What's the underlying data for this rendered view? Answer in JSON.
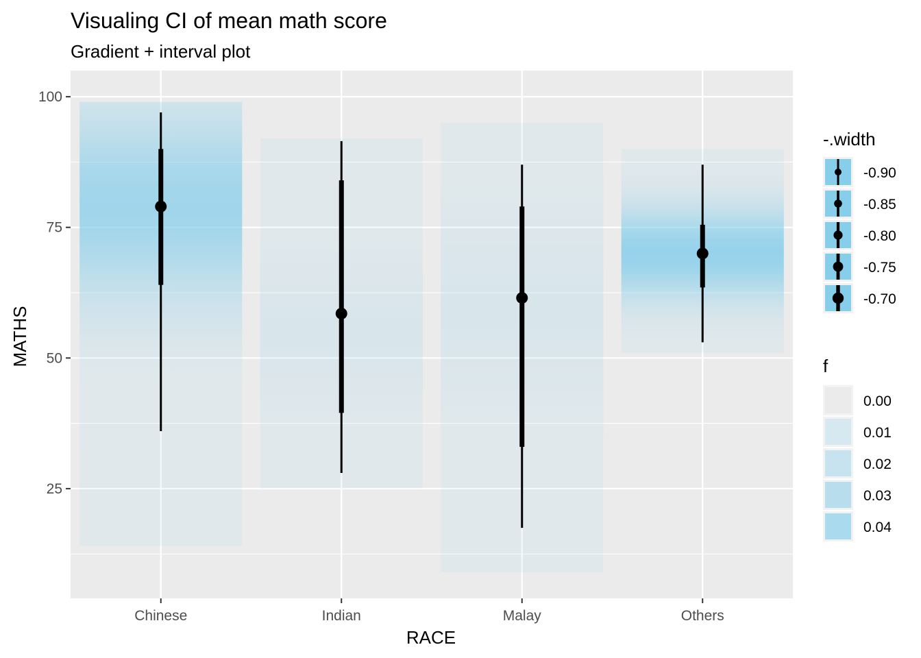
{
  "chart_data": {
    "type": "gradient-interval",
    "title": "Visualing CI of mean math score",
    "subtitle": "Gradient + interval plot",
    "xlabel": "RACE",
    "ylabel": "MATHS",
    "ylim": [
      4,
      105
    ],
    "yticks": [
      25,
      50,
      75,
      100
    ],
    "categories": [
      "Chinese",
      "Indian",
      "Malay",
      "Others"
    ],
    "grid": true,
    "series": [
      {
        "category": "Chinese",
        "mean": 79,
        "interval_outer": [
          36,
          97
        ],
        "interval_inner": [
          64,
          90
        ],
        "density_range": [
          14,
          99
        ],
        "density_peak": 79,
        "density_max": 0.04
      },
      {
        "category": "Indian",
        "mean": 58.5,
        "interval_outer": [
          28,
          91.5
        ],
        "interval_inner": [
          39.5,
          84
        ],
        "density_range": [
          25,
          92
        ],
        "density_peak": 55,
        "density_max": 0.01
      },
      {
        "category": "Malay",
        "mean": 61.5,
        "interval_outer": [
          17.5,
          87
        ],
        "interval_inner": [
          33,
          79
        ],
        "density_range": [
          9,
          95
        ],
        "density_peak": 60,
        "density_max": 0.01
      },
      {
        "category": "Others",
        "mean": 70,
        "interval_outer": [
          53,
          87
        ],
        "interval_inner": [
          63.5,
          75.5
        ],
        "density_range": [
          51,
          90
        ],
        "density_peak": 70,
        "density_max": 0.045
      }
    ],
    "legend_width": {
      "title": "-.width",
      "entries": [
        "-0.90",
        "-0.85",
        "-0.80",
        "-0.75",
        "-0.70"
      ],
      "placement": "right"
    },
    "legend_f": {
      "title": "f",
      "entries": [
        "0.00",
        "0.01",
        "0.02",
        "0.03",
        "0.04"
      ],
      "placement": "right"
    },
    "colors": {
      "panel": "#ebebeb",
      "grid": "#ffffff",
      "fill": "#87ceeb",
      "interval": "#000000"
    }
  }
}
